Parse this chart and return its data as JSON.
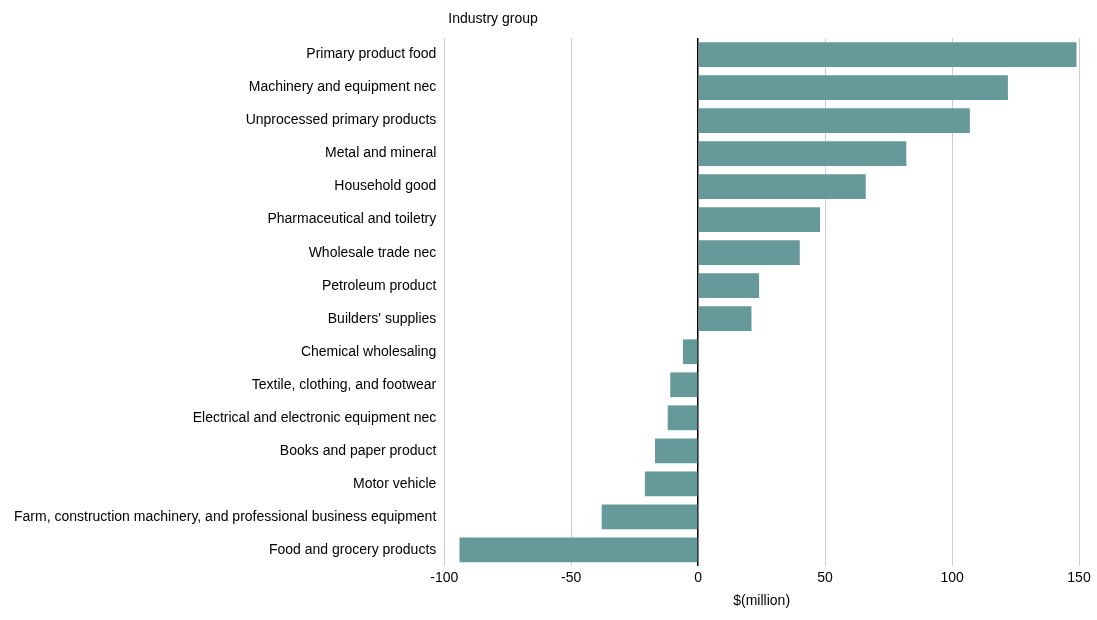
{
  "chart_data": {
    "type": "bar",
    "orientation": "horizontal",
    "ylabel": "Industry group",
    "xlabel": "$(million)",
    "categories": [
      "Primary product food",
      "Machinery and equipment nec",
      "Unprocessed primary products",
      "Metal and mineral",
      "Household good",
      "Pharmaceutical and toiletry",
      "Wholesale trade nec",
      "Petroleum product",
      "Builders' supplies",
      "Chemical wholesaling",
      "Textile, clothing, and footwear",
      "Electrical and electronic equipment nec",
      "Books and paper product",
      "Motor vehicle",
      "Farm, construction machinery, and professional business equipment",
      "Food and grocery products"
    ],
    "values": [
      149,
      122,
      107,
      82,
      66,
      48,
      40,
      24,
      21,
      -6,
      -11,
      -12,
      -17,
      -21,
      -38,
      -94
    ],
    "color": "#669999",
    "xlim": [
      -100,
      150
    ],
    "xticks": [
      -100,
      -50,
      0,
      50,
      100,
      150
    ],
    "grid": "x"
  }
}
